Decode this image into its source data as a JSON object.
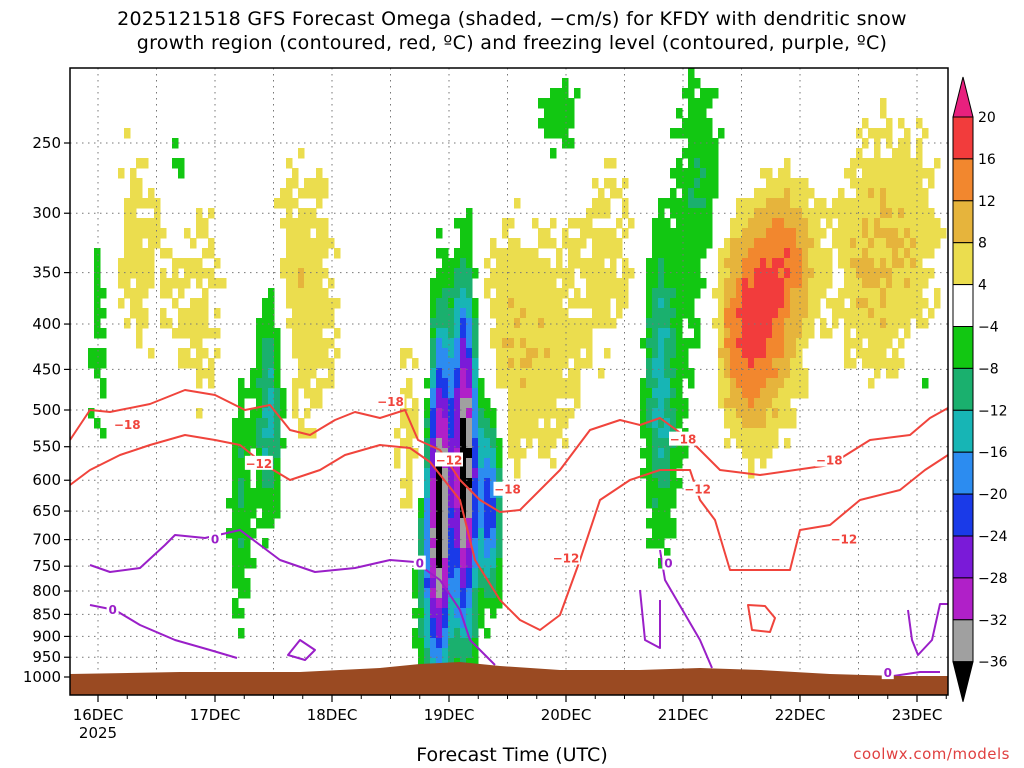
{
  "title": {
    "line1": "2025121518 GFS Forecast Omega (shaded, −cm/s) for KFDY with dendritic snow",
    "line2": "growth region (contoured, red, ºC) and freezing level (contoured, purple, ºC)"
  },
  "xaxis_title": "Forecast Time (UTC)",
  "credit": "coolwx.com/models",
  "colors": {
    "red_contour": "#f0443c",
    "purple_contour": "#9a1fc8",
    "terrain": "#9a4a22",
    "grid": "#777777"
  },
  "chart_data": {
    "type": "heatmap",
    "variable": "Omega (shaded, −cm/s)",
    "y_ticks": [
      "250",
      "300",
      "350",
      "400",
      "450",
      "500",
      "550",
      "600",
      "650",
      "700",
      "750",
      "800",
      "850",
      "900",
      "950",
      "1000"
    ],
    "y_values": [
      250,
      300,
      350,
      400,
      450,
      500,
      550,
      600,
      650,
      700,
      750,
      800,
      850,
      900,
      950,
      1000
    ],
    "ylim": [
      200,
      1020
    ],
    "yscale": "log-pressure",
    "x_ticks": [
      "16DEC",
      "17DEC",
      "18DEC",
      "19DEC",
      "20DEC",
      "21DEC",
      "22DEC",
      "23DEC"
    ],
    "x_start_label": "2025",
    "xlim": [
      "2025-12-15T18",
      "2025-12-23T06"
    ],
    "colorbar": {
      "labels": [
        "20",
        "16",
        "12",
        "8",
        "4",
        "−4",
        "−8",
        "−12",
        "−16",
        "−20",
        "−24",
        "−28",
        "−32",
        "−36"
      ],
      "colors": [
        "#e8207e",
        "#f23c3c",
        "#f2872e",
        "#e6b43c",
        "#ebdd4e",
        "#ffffff",
        "#12c712",
        "#1ab06e",
        "#17b5b5",
        "#2c8cf0",
        "#1a3ae8",
        "#7a1ad8",
        "#b020c8",
        "#a0a0a0",
        "#000000"
      ]
    },
    "omega_features": [
      {
        "time": "2025-12-18T23",
        "p_top": 380,
        "p_bot": 920,
        "value": -36
      },
      {
        "time": "2025-12-19T03",
        "p_top": 390,
        "p_bot": 930,
        "value": -36
      },
      {
        "time": "2025-12-21T18",
        "p_top": 350,
        "p_bot": 620,
        "value": 16
      },
      {
        "time": "2025-12-21T00",
        "p_top": 210,
        "p_bot": 950,
        "value": -8
      },
      {
        "time": "2025-12-17T12",
        "p_top": 400,
        "p_bot": 600,
        "value": -16
      }
    ],
    "contours": [
      {
        "name": "-18",
        "color": "red_contour"
      },
      {
        "name": "-12",
        "color": "red_contour"
      },
      {
        "name": "0",
        "color": "purple_contour"
      }
    ],
    "contour_labels": [
      {
        "text": "−18",
        "time": "2025-12-16T06",
        "p": 520
      },
      {
        "text": "−12",
        "time": "2025-12-17T09",
        "p": 575
      },
      {
        "text": "−18",
        "time": "2025-12-18T12",
        "p": 490
      },
      {
        "text": "−12",
        "time": "2025-12-19T00",
        "p": 570
      },
      {
        "text": "−18",
        "time": "2025-12-19T12",
        "p": 615
      },
      {
        "text": "−12",
        "time": "2025-12-20T00",
        "p": 735
      },
      {
        "text": "−18",
        "time": "2025-12-21T00",
        "p": 540
      },
      {
        "text": "−12",
        "time": "2025-12-21T03",
        "p": 615
      },
      {
        "text": "−18",
        "time": "2025-12-22T06",
        "p": 570
      },
      {
        "text": "−12",
        "time": "2025-12-22T09",
        "p": 700
      },
      {
        "text": "0",
        "time": "2025-12-17T00",
        "p": 700
      },
      {
        "text": "0",
        "time": "2025-12-18T18",
        "p": 745
      },
      {
        "text": "0",
        "time": "2025-12-16T03",
        "p": 840
      },
      {
        "text": "0",
        "time": "2025-12-20T21",
        "p": 745
      },
      {
        "text": "0",
        "time": "2025-12-22T18",
        "p": 990
      }
    ]
  }
}
